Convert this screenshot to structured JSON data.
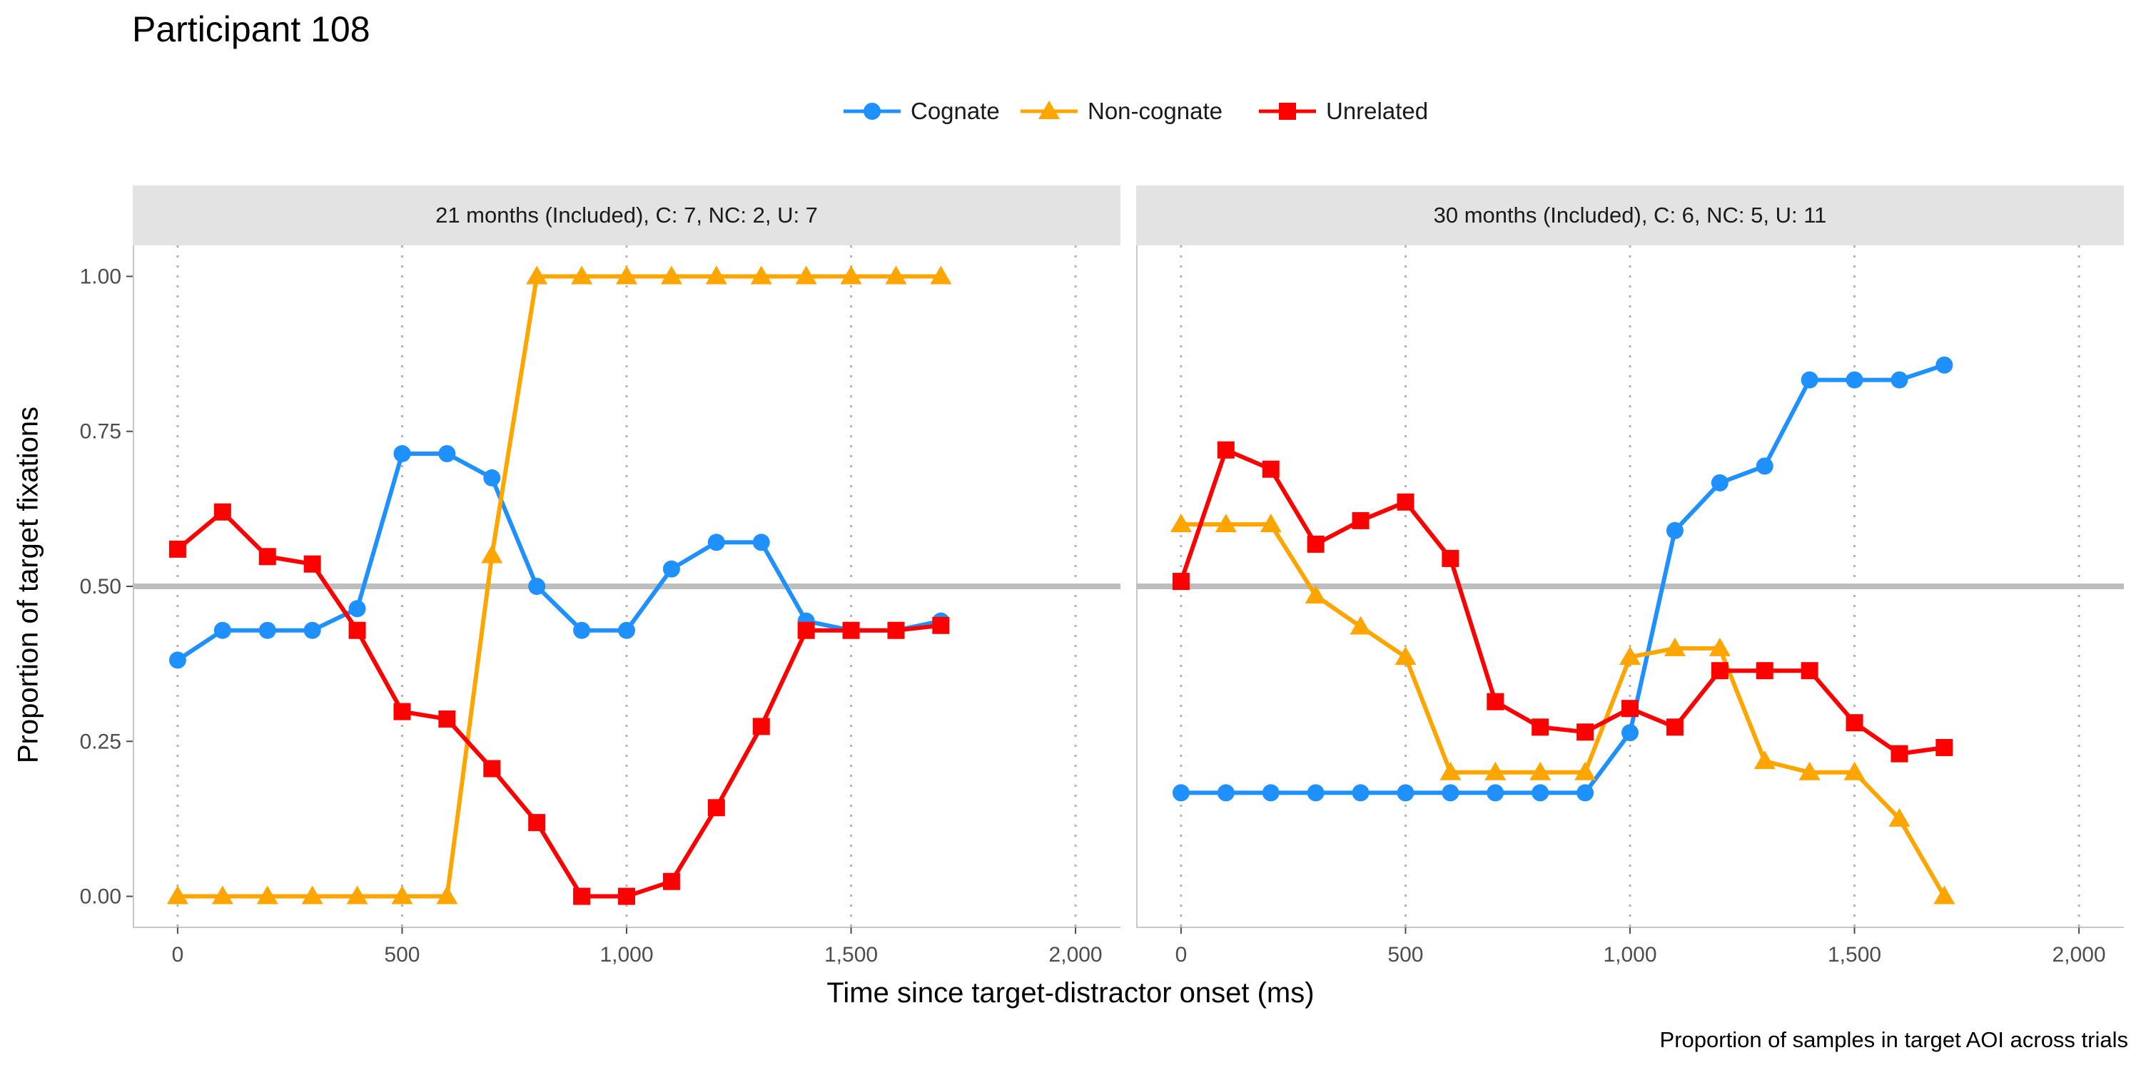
{
  "title": "Participant 108",
  "legend": [
    {
      "name": "Cognate",
      "color": "#1E90FF",
      "shape": "circle"
    },
    {
      "name": "Non-cognate",
      "color": "#FFA500",
      "shape": "triangle"
    },
    {
      "name": "Unrelated",
      "color": "#FF0000",
      "shape": "square"
    }
  ],
  "xlabel": "Time since target-distractor onset (ms)",
  "ylabel": "Proportion of target fixations",
  "caption": "Proportion of samples in target AOI across trials",
  "chart_data": [
    {
      "type": "line",
      "panel_title": "21 months (Included), C: 7, NC: 2, U: 7",
      "x": [
        0,
        100,
        200,
        300,
        400,
        500,
        600,
        700,
        800,
        900,
        1000,
        1100,
        1200,
        1300,
        1400,
        1500,
        1600,
        1700
      ],
      "xlim": [
        -100,
        2100
      ],
      "ylim": [
        -0.05,
        1.05
      ],
      "xticks": [
        0,
        500,
        1000,
        1500,
        2000
      ],
      "xtick_labels": [
        "0",
        "500",
        "1,000",
        "1,500",
        "2,000"
      ],
      "yticks": [
        0,
        0.25,
        0.5,
        0.75,
        1
      ],
      "ytick_labels": [
        "0.00",
        "0.25",
        "0.50",
        "0.75",
        "1.00"
      ],
      "reference_line_y": 0.5,
      "vertical_gridlines": [
        0,
        500,
        1000,
        1500,
        2000
      ],
      "series": [
        {
          "name": "Cognate",
          "values": [
            0.381,
            0.429,
            0.429,
            0.429,
            0.464,
            0.714,
            0.714,
            0.675,
            0.5,
            0.429,
            0.429,
            0.528,
            0.571,
            0.571,
            0.444,
            0.429,
            0.429,
            0.444
          ]
        },
        {
          "name": "Non-cognate",
          "values": [
            0,
            0,
            0,
            0,
            0,
            0,
            0,
            0.55,
            1,
            1,
            1,
            1,
            1,
            1,
            1,
            1,
            1,
            1
          ]
        },
        {
          "name": "Unrelated",
          "values": [
            0.56,
            0.62,
            0.548,
            0.536,
            0.429,
            0.298,
            0.286,
            0.206,
            0.119,
            0,
            0,
            0.024,
            0.143,
            0.274,
            0.429,
            0.429,
            0.429,
            0.437
          ]
        }
      ]
    },
    {
      "type": "line",
      "panel_title": "30 months (Included), C: 6, NC: 5, U: 11",
      "x": [
        0,
        100,
        200,
        300,
        400,
        500,
        600,
        700,
        800,
        900,
        1000,
        1100,
        1200,
        1300,
        1400,
        1500,
        1600,
        1700
      ],
      "xlim": [
        -100,
        2100
      ],
      "ylim": [
        -0.05,
        1.05
      ],
      "xticks": [
        0,
        500,
        1000,
        1500,
        2000
      ],
      "xtick_labels": [
        "0",
        "500",
        "1,000",
        "1,500",
        "2,000"
      ],
      "reference_line_y": 0.5,
      "vertical_gridlines": [
        0,
        500,
        1000,
        1500,
        2000
      ],
      "series": [
        {
          "name": "Cognate",
          "values": [
            0.167,
            0.167,
            0.167,
            0.167,
            0.167,
            0.167,
            0.167,
            0.167,
            0.167,
            0.167,
            0.264,
            0.59,
            0.667,
            0.694,
            0.833,
            0.833,
            0.833,
            0.857
          ]
        },
        {
          "name": "Non-cognate",
          "values": [
            0.6,
            0.6,
            0.6,
            0.485,
            0.435,
            0.386,
            0.2,
            0.2,
            0.2,
            0.2,
            0.386,
            0.4,
            0.4,
            0.218,
            0.2,
            0.2,
            0.125,
            0
          ]
        },
        {
          "name": "Unrelated",
          "values": [
            0.508,
            0.72,
            0.689,
            0.568,
            0.606,
            0.636,
            0.545,
            0.314,
            0.273,
            0.265,
            0.303,
            0.273,
            0.364,
            0.364,
            0.364,
            0.28,
            0.23,
            0.24
          ]
        }
      ]
    }
  ]
}
